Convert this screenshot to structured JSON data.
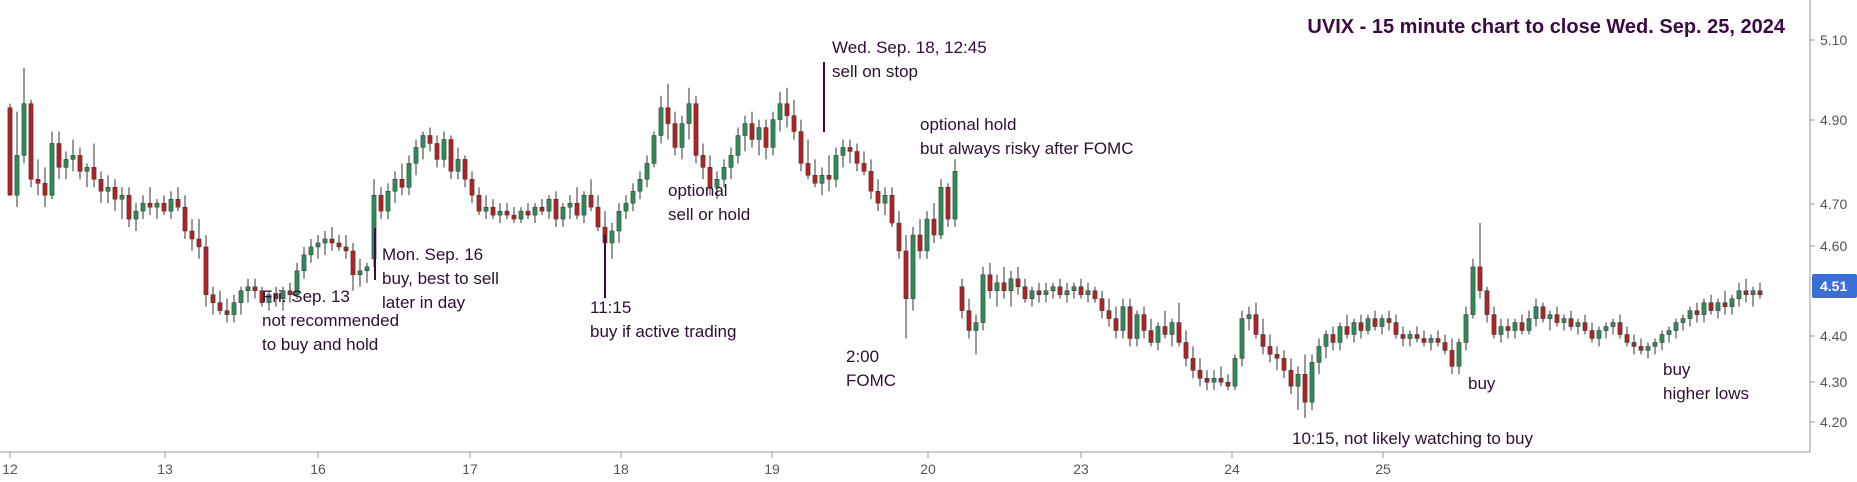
{
  "chart_data": {
    "type": "candlestick",
    "title": "UVIX - 15 minute chart to close Wed. Sep. 25, 2024",
    "ylim": [
      4.17,
      5.15
    ],
    "y_ticks": [
      "5.10",
      "4.90",
      "4.70",
      "4.60",
      "4.40",
      "4.30",
      "4.20"
    ],
    "y_tick_values": [
      5.1,
      4.9,
      4.7,
      4.6,
      4.4,
      4.3,
      4.2
    ],
    "x_ticks": [
      "12",
      "13",
      "16",
      "17",
      "18",
      "19",
      "20",
      "23",
      "24",
      "25"
    ],
    "x_tick_positions": [
      0,
      26,
      52,
      78,
      104,
      130,
      156,
      182,
      208,
      234
    ],
    "current_price": "4.51",
    "current_price_value": 4.51,
    "up_color": "#2e8b57",
    "down_color": "#b22222",
    "price_tag_color": "#3a6fd8",
    "candles": [
      [
        4.98,
        4.99,
        4.76,
        4.76
      ],
      [
        4.76,
        4.97,
        4.73,
        4.86
      ],
      [
        4.86,
        5.08,
        4.84,
        4.99
      ],
      [
        4.99,
        5.0,
        4.78,
        4.8
      ],
      [
        4.8,
        4.85,
        4.76,
        4.79
      ],
      [
        4.79,
        4.83,
        4.73,
        4.76
      ],
      [
        4.76,
        4.92,
        4.75,
        4.89
      ],
      [
        4.89,
        4.92,
        4.8,
        4.83
      ],
      [
        4.83,
        4.87,
        4.8,
        4.85
      ],
      [
        4.85,
        4.9,
        4.82,
        4.86
      ],
      [
        4.86,
        4.88,
        4.8,
        4.82
      ],
      [
        4.82,
        4.84,
        4.78,
        4.83
      ],
      [
        4.83,
        4.89,
        4.78,
        4.8
      ],
      [
        4.8,
        4.82,
        4.74,
        4.77
      ],
      [
        4.77,
        4.81,
        4.74,
        4.78
      ],
      [
        4.78,
        4.8,
        4.72,
        4.75
      ],
      [
        4.75,
        4.78,
        4.7,
        4.76
      ],
      [
        4.76,
        4.78,
        4.68,
        4.7
      ],
      [
        4.7,
        4.74,
        4.67,
        4.72
      ],
      [
        4.72,
        4.76,
        4.7,
        4.74
      ],
      [
        4.74,
        4.78,
        4.71,
        4.73
      ],
      [
        4.73,
        4.75,
        4.7,
        4.74
      ],
      [
        4.74,
        4.76,
        4.71,
        4.72
      ],
      [
        4.72,
        4.77,
        4.7,
        4.75
      ],
      [
        4.75,
        4.78,
        4.72,
        4.73
      ],
      [
        4.73,
        4.76,
        4.65,
        4.67
      ],
      [
        4.67,
        4.7,
        4.62,
        4.65
      ],
      [
        4.65,
        4.7,
        4.6,
        4.63
      ],
      [
        4.63,
        4.66,
        4.48,
        4.51
      ],
      [
        4.51,
        4.53,
        4.46,
        4.49
      ],
      [
        4.49,
        4.52,
        4.46,
        4.47
      ],
      [
        4.47,
        4.5,
        4.44,
        4.46
      ],
      [
        4.46,
        4.51,
        4.44,
        4.49
      ],
      [
        4.49,
        4.53,
        4.46,
        4.52
      ],
      [
        4.52,
        4.55,
        4.49,
        4.53
      ],
      [
        4.53,
        4.55,
        4.5,
        4.52
      ],
      [
        4.52,
        4.53,
        4.48,
        4.49
      ],
      [
        4.49,
        4.52,
        4.47,
        4.51
      ],
      [
        4.51,
        4.53,
        4.48,
        4.5
      ],
      [
        4.5,
        4.53,
        4.47,
        4.52
      ],
      [
        4.52,
        4.54,
        4.49,
        4.51
      ],
      [
        4.51,
        4.59,
        4.5,
        4.57
      ],
      [
        4.57,
        4.63,
        4.55,
        4.61
      ],
      [
        4.61,
        4.65,
        4.59,
        4.63
      ],
      [
        4.63,
        4.66,
        4.6,
        4.64
      ],
      [
        4.64,
        4.67,
        4.61,
        4.65
      ],
      [
        4.65,
        4.68,
        4.62,
        4.64
      ],
      [
        4.64,
        4.66,
        4.62,
        4.63
      ],
      [
        4.63,
        4.66,
        4.6,
        4.62
      ],
      [
        4.62,
        4.64,
        4.52,
        4.56
      ],
      [
        4.56,
        4.6,
        4.53,
        4.57
      ],
      [
        4.57,
        4.59,
        4.54,
        4.58
      ],
      [
        4.6,
        4.8,
        4.58,
        4.76
      ],
      [
        4.76,
        4.78,
        4.7,
        4.72
      ],
      [
        4.72,
        4.79,
        4.7,
        4.77
      ],
      [
        4.77,
        4.82,
        4.74,
        4.8
      ],
      [
        4.8,
        4.84,
        4.76,
        4.78
      ],
      [
        4.78,
        4.86,
        4.76,
        4.84
      ],
      [
        4.84,
        4.9,
        4.81,
        4.88
      ],
      [
        4.88,
        4.92,
        4.85,
        4.91
      ],
      [
        4.91,
        4.93,
        4.87,
        4.89
      ],
      [
        4.89,
        4.91,
        4.83,
        4.85
      ],
      [
        4.85,
        4.92,
        4.83,
        4.9
      ],
      [
        4.9,
        4.91,
        4.8,
        4.82
      ],
      [
        4.82,
        4.88,
        4.8,
        4.85
      ],
      [
        4.85,
        4.86,
        4.78,
        4.8
      ],
      [
        4.8,
        4.82,
        4.74,
        4.76
      ],
      [
        4.76,
        4.78,
        4.71,
        4.72
      ],
      [
        4.72,
        4.76,
        4.7,
        4.73
      ],
      [
        4.73,
        4.75,
        4.7,
        4.71
      ],
      [
        4.71,
        4.74,
        4.69,
        4.72
      ],
      [
        4.72,
        4.74,
        4.7,
        4.71
      ],
      [
        4.71,
        4.73,
        4.69,
        4.7
      ],
      [
        4.7,
        4.73,
        4.69,
        4.72
      ],
      [
        4.72,
        4.74,
        4.7,
        4.71
      ],
      [
        4.71,
        4.74,
        4.69,
        4.73
      ],
      [
        4.73,
        4.75,
        4.71,
        4.72
      ],
      [
        4.72,
        4.76,
        4.7,
        4.75
      ],
      [
        4.75,
        4.77,
        4.68,
        4.7
      ],
      [
        4.7,
        4.74,
        4.68,
        4.73
      ],
      [
        4.73,
        4.76,
        4.7,
        4.74
      ],
      [
        4.74,
        4.78,
        4.7,
        4.71
      ],
      [
        4.71,
        4.77,
        4.69,
        4.76
      ],
      [
        4.76,
        4.8,
        4.72,
        4.73
      ],
      [
        4.73,
        4.76,
        4.67,
        4.68
      ],
      [
        4.68,
        4.72,
        4.62,
        4.64
      ],
      [
        4.64,
        4.69,
        4.6,
        4.67
      ],
      [
        4.67,
        4.74,
        4.64,
        4.72
      ],
      [
        4.72,
        4.76,
        4.7,
        4.74
      ],
      [
        4.74,
        4.79,
        4.72,
        4.77
      ],
      [
        4.77,
        4.82,
        4.75,
        4.8
      ],
      [
        4.8,
        4.86,
        4.78,
        4.84
      ],
      [
        4.84,
        4.92,
        4.83,
        4.91
      ],
      [
        4.91,
        5.01,
        4.89,
        4.98
      ],
      [
        4.98,
        5.04,
        4.9,
        4.94
      ],
      [
        4.94,
        4.97,
        4.86,
        4.88
      ],
      [
        4.88,
        4.96,
        4.85,
        4.94
      ],
      [
        4.94,
        5.03,
        4.9,
        4.99
      ],
      [
        4.99,
        5.01,
        4.84,
        4.86
      ],
      [
        4.86,
        4.89,
        4.8,
        4.83
      ],
      [
        4.83,
        4.86,
        4.76,
        4.78
      ],
      [
        4.78,
        4.82,
        4.75,
        4.8
      ],
      [
        4.8,
        4.85,
        4.78,
        4.83
      ],
      [
        4.83,
        4.88,
        4.8,
        4.86
      ],
      [
        4.86,
        4.93,
        4.84,
        4.91
      ],
      [
        4.91,
        4.96,
        4.87,
        4.94
      ],
      [
        4.94,
        4.97,
        4.88,
        4.9
      ],
      [
        4.9,
        4.95,
        4.86,
        4.93
      ],
      [
        4.93,
        4.95,
        4.85,
        4.88
      ],
      [
        4.88,
        4.97,
        4.86,
        4.95
      ],
      [
        4.95,
        5.02,
        4.92,
        4.99
      ],
      [
        4.99,
        5.03,
        4.93,
        4.96
      ],
      [
        4.96,
        5.0,
        4.9,
        4.92
      ],
      [
        4.92,
        4.95,
        4.82,
        4.84
      ],
      [
        4.84,
        4.9,
        4.8,
        4.81
      ],
      [
        4.81,
        4.85,
        4.78,
        4.79
      ],
      [
        4.79,
        4.83,
        4.76,
        4.81
      ],
      [
        4.81,
        4.86,
        4.77,
        4.8
      ],
      [
        4.8,
        4.88,
        4.78,
        4.86
      ],
      [
        4.86,
        4.9,
        4.83,
        4.88
      ],
      [
        4.88,
        4.9,
        4.84,
        4.87
      ],
      [
        4.87,
        4.89,
        4.82,
        4.84
      ],
      [
        4.84,
        4.87,
        4.81,
        4.82
      ],
      [
        4.82,
        4.85,
        4.75,
        4.77
      ],
      [
        4.77,
        4.8,
        4.72,
        4.74
      ],
      [
        4.74,
        4.78,
        4.71,
        4.76
      ],
      [
        4.76,
        4.78,
        4.68,
        4.69
      ],
      [
        4.69,
        4.72,
        4.6,
        4.62
      ],
      [
        4.62,
        4.66,
        4.4,
        4.5
      ],
      [
        4.5,
        4.68,
        4.47,
        4.66
      ],
      [
        4.66,
        4.7,
        4.6,
        4.62
      ],
      [
        4.62,
        4.72,
        4.6,
        4.7
      ],
      [
        4.7,
        4.74,
        4.64,
        4.66
      ],
      [
        4.66,
        4.8,
        4.65,
        4.78
      ],
      [
        4.78,
        4.79,
        4.68,
        4.7
      ],
      [
        4.7,
        4.85,
        4.68,
        4.82
      ],
      [
        4.53,
        4.55,
        4.45,
        4.47
      ],
      [
        4.47,
        4.5,
        4.4,
        4.42
      ],
      [
        4.42,
        4.46,
        4.36,
        4.44
      ],
      [
        4.44,
        4.58,
        4.42,
        4.56
      ],
      [
        4.56,
        4.59,
        4.5,
        4.52
      ],
      [
        4.52,
        4.56,
        4.48,
        4.54
      ],
      [
        4.54,
        4.58,
        4.5,
        4.52
      ],
      [
        4.52,
        4.57,
        4.48,
        4.55
      ],
      [
        4.55,
        4.58,
        4.51,
        4.53
      ],
      [
        4.53,
        4.55,
        4.49,
        4.5
      ],
      [
        4.5,
        4.53,
        4.48,
        4.52
      ],
      [
        4.52,
        4.54,
        4.49,
        4.51
      ],
      [
        4.51,
        4.54,
        4.49,
        4.52
      ],
      [
        4.52,
        4.54,
        4.5,
        4.53
      ],
      [
        4.53,
        4.55,
        4.5,
        4.51
      ],
      [
        4.51,
        4.54,
        4.49,
        4.52
      ],
      [
        4.52,
        4.54,
        4.5,
        4.53
      ],
      [
        4.53,
        4.55,
        4.5,
        4.51
      ],
      [
        4.51,
        4.54,
        4.49,
        4.52
      ],
      [
        4.52,
        4.53,
        4.49,
        4.5
      ],
      [
        4.5,
        4.52,
        4.45,
        4.47
      ],
      [
        4.47,
        4.5,
        4.43,
        4.45
      ],
      [
        4.45,
        4.48,
        4.4,
        4.42
      ],
      [
        4.42,
        4.5,
        4.4,
        4.48
      ],
      [
        4.48,
        4.5,
        4.38,
        4.4
      ],
      [
        4.4,
        4.47,
        4.38,
        4.46
      ],
      [
        4.46,
        4.48,
        4.4,
        4.42
      ],
      [
        4.42,
        4.45,
        4.38,
        4.39
      ],
      [
        4.39,
        4.44,
        4.37,
        4.43
      ],
      [
        4.43,
        4.47,
        4.4,
        4.41
      ],
      [
        4.41,
        4.45,
        4.38,
        4.44
      ],
      [
        4.44,
        4.49,
        4.38,
        4.39
      ],
      [
        4.39,
        4.42,
        4.33,
        4.35
      ],
      [
        4.35,
        4.38,
        4.3,
        4.32
      ],
      [
        4.32,
        4.35,
        4.28,
        4.3
      ],
      [
        4.3,
        4.32,
        4.27,
        4.29
      ],
      [
        4.29,
        4.32,
        4.27,
        4.3
      ],
      [
        4.3,
        4.33,
        4.28,
        4.29
      ],
      [
        4.29,
        4.31,
        4.27,
        4.28
      ],
      [
        4.28,
        4.36,
        4.27,
        4.35
      ],
      [
        4.35,
        4.47,
        4.33,
        4.45
      ],
      [
        4.45,
        4.48,
        4.42,
        4.46
      ],
      [
        4.46,
        4.49,
        4.4,
        4.41
      ],
      [
        4.41,
        4.45,
        4.36,
        4.38
      ],
      [
        4.38,
        4.41,
        4.34,
        4.36
      ],
      [
        4.36,
        4.38,
        4.32,
        4.35
      ],
      [
        4.35,
        4.37,
        4.3,
        4.32
      ],
      [
        4.32,
        4.35,
        4.26,
        4.28
      ],
      [
        4.28,
        4.33,
        4.22,
        4.31
      ],
      [
        4.31,
        4.36,
        4.2,
        4.24
      ],
      [
        4.24,
        4.36,
        4.22,
        4.34
      ],
      [
        4.34,
        4.4,
        4.31,
        4.38
      ],
      [
        4.38,
        4.42,
        4.35,
        4.41
      ],
      [
        4.41,
        4.43,
        4.37,
        4.39
      ],
      [
        4.39,
        4.44,
        4.37,
        4.43
      ],
      [
        4.43,
        4.46,
        4.4,
        4.41
      ],
      [
        4.41,
        4.45,
        4.39,
        4.44
      ],
      [
        4.44,
        4.46,
        4.4,
        4.42
      ],
      [
        4.42,
        4.46,
        4.41,
        4.45
      ],
      [
        4.45,
        4.47,
        4.42,
        4.43
      ],
      [
        4.43,
        4.46,
        4.41,
        4.45
      ],
      [
        4.45,
        4.47,
        4.42,
        4.44
      ],
      [
        4.44,
        4.46,
        4.4,
        4.41
      ],
      [
        4.41,
        4.43,
        4.38,
        4.4
      ],
      [
        4.4,
        4.42,
        4.38,
        4.41
      ],
      [
        4.41,
        4.43,
        4.39,
        4.4
      ],
      [
        4.4,
        4.42,
        4.38,
        4.39
      ],
      [
        4.39,
        4.41,
        4.37,
        4.4
      ],
      [
        4.4,
        4.42,
        4.38,
        4.39
      ],
      [
        4.39,
        4.41,
        4.36,
        4.37
      ],
      [
        4.37,
        4.4,
        4.31,
        4.33
      ],
      [
        4.33,
        4.4,
        4.31,
        4.39
      ],
      [
        4.39,
        4.48,
        4.37,
        4.46
      ],
      [
        4.46,
        4.6,
        4.45,
        4.58
      ],
      [
        4.58,
        4.69,
        4.5,
        4.52
      ],
      [
        4.52,
        4.53,
        4.44,
        4.46
      ],
      [
        4.46,
        4.48,
        4.4,
        4.41
      ],
      [
        4.41,
        4.45,
        4.39,
        4.43
      ],
      [
        4.43,
        4.45,
        4.4,
        4.42
      ],
      [
        4.42,
        4.45,
        4.4,
        4.44
      ],
      [
        4.44,
        4.46,
        4.41,
        4.42
      ],
      [
        4.42,
        4.47,
        4.41,
        4.45
      ],
      [
        4.45,
        4.5,
        4.43,
        4.48
      ],
      [
        4.48,
        4.49,
        4.44,
        4.45
      ],
      [
        4.45,
        4.47,
        4.42,
        4.46
      ],
      [
        4.46,
        4.48,
        4.43,
        4.44
      ],
      [
        4.44,
        4.46,
        4.42,
        4.45
      ],
      [
        4.45,
        4.47,
        4.42,
        4.43
      ],
      [
        4.43,
        4.45,
        4.41,
        4.44
      ],
      [
        4.44,
        4.46,
        4.41,
        4.42
      ],
      [
        4.42,
        4.44,
        4.39,
        4.4
      ],
      [
        4.4,
        4.43,
        4.38,
        4.42
      ],
      [
        4.42,
        4.44,
        4.4,
        4.43
      ],
      [
        4.43,
        4.45,
        4.41,
        4.44
      ],
      [
        4.44,
        4.46,
        4.4,
        4.41
      ],
      [
        4.41,
        4.43,
        4.38,
        4.39
      ],
      [
        4.39,
        4.41,
        4.36,
        4.38
      ],
      [
        4.38,
        4.4,
        4.36,
        4.37
      ],
      [
        4.37,
        4.39,
        4.35,
        4.38
      ],
      [
        4.38,
        4.4,
        4.36,
        4.39
      ],
      [
        4.39,
        4.42,
        4.37,
        4.41
      ],
      [
        4.41,
        4.43,
        4.39,
        4.42
      ],
      [
        4.42,
        4.45,
        4.4,
        4.44
      ],
      [
        4.44,
        4.46,
        4.42,
        4.45
      ],
      [
        4.45,
        4.48,
        4.43,
        4.47
      ],
      [
        4.47,
        4.49,
        4.44,
        4.46
      ],
      [
        4.46,
        4.5,
        4.44,
        4.49
      ],
      [
        4.49,
        4.51,
        4.46,
        4.47
      ],
      [
        4.47,
        4.5,
        4.45,
        4.49
      ],
      [
        4.49,
        4.52,
        4.46,
        4.48
      ],
      [
        4.48,
        4.51,
        4.46,
        4.5
      ],
      [
        4.5,
        4.54,
        4.48,
        4.52
      ],
      [
        4.52,
        4.55,
        4.49,
        4.51
      ],
      [
        4.51,
        4.53,
        4.48,
        4.52
      ],
      [
        4.52,
        4.54,
        4.5,
        4.51
      ]
    ],
    "annotations": [
      {
        "lines": [
          "Fri. Sep. 13",
          "not recommended",
          "to buy and hold"
        ]
      },
      {
        "lines": [
          "Mon. Sep. 16",
          "buy, best to sell",
          "later in day"
        ]
      },
      {
        "lines": [
          "11:15",
          "buy if active trading"
        ]
      },
      {
        "lines": [
          "optional",
          "sell or hold"
        ]
      },
      {
        "lines": [
          "Wed. Sep. 18, 12:45",
          "sell on stop"
        ]
      },
      {
        "lines": [
          "optional hold",
          "but always risky after FOMC"
        ]
      },
      {
        "lines": [
          "2:00",
          "FOMC"
        ]
      },
      {
        "lines": [
          "10:15, not likely watching to buy"
        ]
      },
      {
        "lines": [
          "buy"
        ]
      },
      {
        "lines": [
          "buy",
          "higher lows"
        ]
      }
    ]
  }
}
